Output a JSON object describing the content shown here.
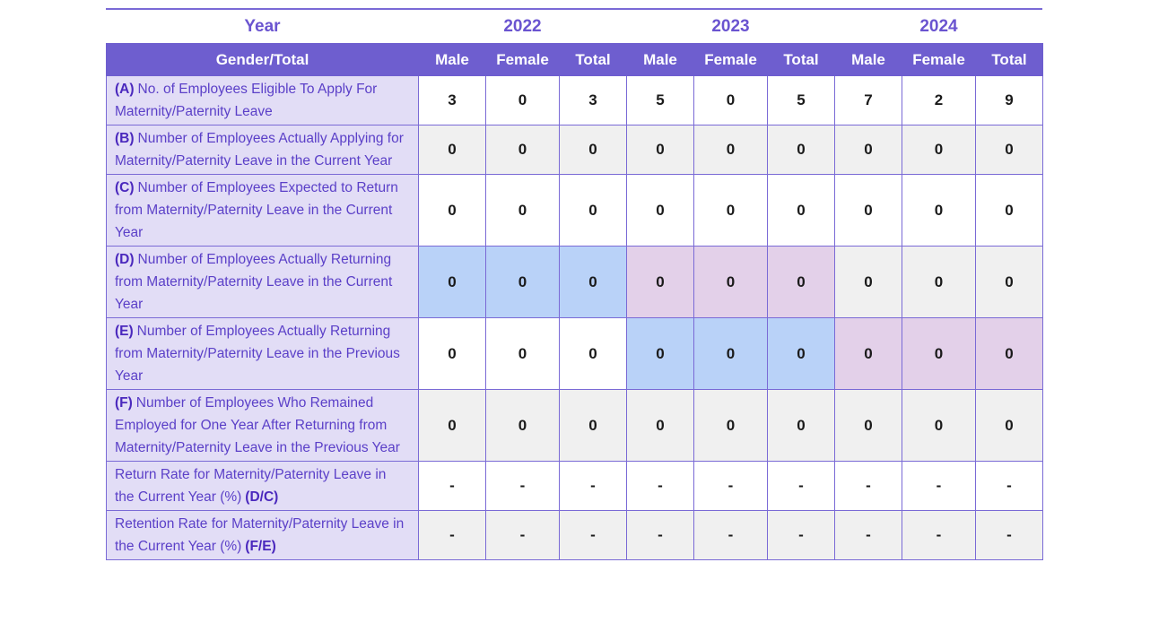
{
  "colors": {
    "header_band": "#6e5ecf",
    "table_border": "#7a6ad6",
    "label_background": "#e2ddf6",
    "label_text": "#5b40c8",
    "label_bold_text": "#4a28bd",
    "year_text": "#6a54d0",
    "header_text": "#ffffff",
    "value_text": "#1a1a1a",
    "cell_plain": "#ffffff",
    "cell_shade": "#f0f0f0",
    "cell_highlight_blue": "#b9d2f8",
    "cell_highlight_pink": "#e3d0e9"
  },
  "chart_data": {
    "type": "table",
    "title": "",
    "corner_labels": {
      "year": "Year",
      "gender": "Gender/Total"
    },
    "year_columns": [
      "2022",
      "2023",
      "2024"
    ],
    "gender_columns": [
      "Male",
      "Female",
      "Total",
      "Male",
      "Female",
      "Total",
      "Male",
      "Female",
      "Total"
    ],
    "rows": [
      {
        "prefix": "(A)",
        "label": "No. of Employees Eligible To Apply For Maternity/Paternity Leave",
        "suffix": "",
        "values": [
          "3",
          "0",
          "3",
          "5",
          "0",
          "5",
          "7",
          "2",
          "9"
        ],
        "highlight": [
          "plain",
          "plain",
          "plain",
          "plain",
          "plain",
          "plain",
          "plain",
          "plain",
          "plain"
        ]
      },
      {
        "prefix": "(B)",
        "label": "Number of Employees Actually Applying for Maternity/Paternity Leave in the Current Year",
        "suffix": "",
        "values": [
          "0",
          "0",
          "0",
          "0",
          "0",
          "0",
          "0",
          "0",
          "0"
        ],
        "highlight": [
          "shade",
          "shade",
          "shade",
          "shade",
          "shade",
          "shade",
          "shade",
          "shade",
          "shade"
        ]
      },
      {
        "prefix": "(C)",
        "label": "Number of Employees Expected to Return from Maternity/Paternity Leave in the Current Year",
        "suffix": "",
        "values": [
          "0",
          "0",
          "0",
          "0",
          "0",
          "0",
          "0",
          "0",
          "0"
        ],
        "highlight": [
          "plain",
          "plain",
          "plain",
          "plain",
          "plain",
          "plain",
          "plain",
          "plain",
          "plain"
        ]
      },
      {
        "prefix": "(D)",
        "label": "Number of Employees Actually Returning from Maternity/Paternity Leave in the Current Year",
        "suffix": "",
        "values": [
          "0",
          "0",
          "0",
          "0",
          "0",
          "0",
          "0",
          "0",
          "0"
        ],
        "highlight": [
          "blue",
          "blue",
          "blue",
          "pink",
          "pink",
          "pink",
          "shade",
          "shade",
          "shade"
        ]
      },
      {
        "prefix": "(E)",
        "label": "Number of Employees Actually Returning from Maternity/Paternity Leave in the Previous Year",
        "suffix": "",
        "values": [
          "0",
          "0",
          "0",
          "0",
          "0",
          "0",
          "0",
          "0",
          "0"
        ],
        "highlight": [
          "plain",
          "plain",
          "plain",
          "blue",
          "blue",
          "blue",
          "pink",
          "pink",
          "pink"
        ]
      },
      {
        "prefix": "(F)",
        "label": "Number of Employees Who Remained Employed for One Year After Returning from Maternity/Paternity Leave in the Previous Year",
        "suffix": "",
        "values": [
          "0",
          "0",
          "0",
          "0",
          "0",
          "0",
          "0",
          "0",
          "0"
        ],
        "highlight": [
          "shade",
          "shade",
          "shade",
          "shade",
          "shade",
          "shade",
          "shade",
          "shade",
          "shade"
        ]
      },
      {
        "prefix": "",
        "label": "Return Rate for Maternity/Paternity Leave in the Current Year (%)",
        "suffix": "(D/C)",
        "values": [
          "-",
          "-",
          "-",
          "-",
          "-",
          "-",
          "-",
          "-",
          "-"
        ],
        "highlight": [
          "plain",
          "plain",
          "plain",
          "plain",
          "plain",
          "plain",
          "plain",
          "plain",
          "plain"
        ]
      },
      {
        "prefix": "",
        "label": "Retention Rate for Maternity/Paternity Leave in the Current Year (%)",
        "suffix": "(F/E)",
        "values": [
          "-",
          "-",
          "-",
          "-",
          "-",
          "-",
          "-",
          "-",
          "-"
        ],
        "highlight": [
          "shade",
          "shade",
          "shade",
          "shade",
          "shade",
          "shade",
          "shade",
          "shade",
          "shade"
        ]
      }
    ]
  }
}
